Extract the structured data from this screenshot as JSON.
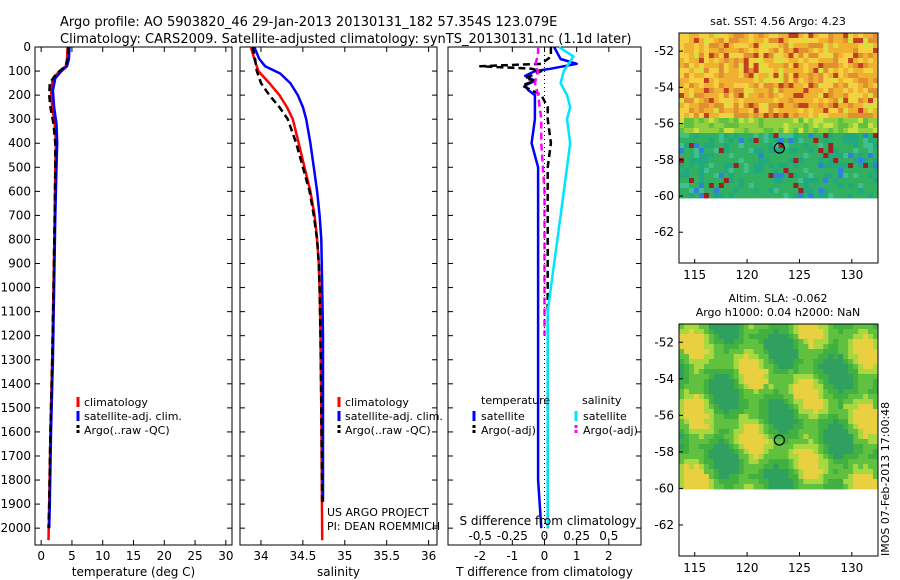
{
  "title_line1": "Argo profile: AO 5903820_46 29-Jan-2013 20130131_182 57.354S 123.079E",
  "title_line2": "Climatology: CARS2009. Satellite-adjusted climatology: synTS_20130131.nc (1.1d later)",
  "side_stamp": "IMOS 07-Feb-2013 17:00:48",
  "project_line1": "US ARGO PROJECT",
  "project_line2": "PI: DEAN ROEMMICH",
  "colors": {
    "climatology": "#ff0000",
    "satellite": "#0000ff",
    "argo": "#000000",
    "sat_salinity": "#00e5ff",
    "argo_salinity_diff": "#ff00ff"
  },
  "chart_data": [
    {
      "type": "line",
      "id": "temperature",
      "xlabel": "temperature (deg C)",
      "ylabel": "",
      "xlim": [
        -1,
        31
      ],
      "ylim": [
        2070,
        0
      ],
      "xticks": [
        0,
        5,
        10,
        15,
        20,
        25,
        30
      ],
      "yticks": [
        0,
        100,
        200,
        300,
        400,
        500,
        600,
        700,
        800,
        900,
        1000,
        1100,
        1200,
        1300,
        1400,
        1500,
        1600,
        1700,
        1800,
        1900,
        2000
      ],
      "legend": [
        "climatology",
        "satellite-adj. clim.",
        "Argo(..raw -QC)"
      ],
      "series": [
        {
          "name": "climatology",
          "style": "solid",
          "points": [
            [
              4.3,
              0
            ],
            [
              4.2,
              50
            ],
            [
              4.0,
              80
            ],
            [
              3.0,
              100
            ],
            [
              1.9,
              130
            ],
            [
              1.6,
              180
            ],
            [
              1.8,
              250
            ],
            [
              2.2,
              320
            ],
            [
              2.4,
              400
            ],
            [
              2.3,
              500
            ],
            [
              2.2,
              700
            ],
            [
              2.0,
              1000
            ],
            [
              1.8,
              1300
            ],
            [
              1.5,
              1600
            ],
            [
              1.3,
              1900
            ],
            [
              1.2,
              2050
            ]
          ]
        },
        {
          "name": "satellite-adj. clim.",
          "style": "solid",
          "points": [
            [
              4.6,
              0
            ],
            [
              4.5,
              50
            ],
            [
              4.2,
              80
            ],
            [
              3.3,
              100
            ],
            [
              2.3,
              130
            ],
            [
              1.9,
              180
            ],
            [
              2.1,
              250
            ],
            [
              2.5,
              320
            ],
            [
              2.6,
              400
            ],
            [
              2.5,
              500
            ],
            [
              2.3,
              700
            ],
            [
              2.1,
              1000
            ],
            [
              1.9,
              1300
            ],
            [
              1.6,
              1600
            ],
            [
              1.4,
              1900
            ],
            [
              1.3,
              2000
            ]
          ]
        },
        {
          "name": "Argo(..raw -QC)",
          "style": "dashed",
          "points": [
            [
              4.4,
              0
            ],
            [
              4.3,
              50
            ],
            [
              4.0,
              80
            ],
            [
              2.5,
              110
            ],
            [
              1.4,
              150
            ],
            [
              1.3,
              200
            ],
            [
              1.5,
              250
            ],
            [
              2.0,
              320
            ],
            [
              2.3,
              400
            ],
            [
              2.3,
              500
            ],
            [
              2.2,
              700
            ],
            [
              2.0,
              1000
            ],
            [
              1.8,
              1300
            ],
            [
              1.5,
              1600
            ],
            [
              1.3,
              1900
            ],
            [
              1.2,
              2000
            ]
          ]
        }
      ]
    },
    {
      "type": "line",
      "id": "salinity",
      "xlabel": "salinity",
      "ylabel": "",
      "xlim": [
        33.75,
        36.1
      ],
      "ylim": [
        2070,
        0
      ],
      "xticks": [
        34,
        34.5,
        35,
        35.5,
        36
      ],
      "legend": [
        "climatology",
        "satellite-adj. clim.",
        "Argo(..raw -QC)"
      ],
      "series": [
        {
          "name": "climatology",
          "style": "solid",
          "points": [
            [
              33.88,
              0
            ],
            [
              33.92,
              50
            ],
            [
              33.97,
              100
            ],
            [
              34.1,
              150
            ],
            [
              34.22,
              200
            ],
            [
              34.31,
              250
            ],
            [
              34.38,
              300
            ],
            [
              34.45,
              400
            ],
            [
              34.52,
              500
            ],
            [
              34.59,
              600
            ],
            [
              34.64,
              700
            ],
            [
              34.67,
              800
            ],
            [
              34.69,
              900
            ],
            [
              34.7,
              1000
            ],
            [
              34.71,
              1200
            ],
            [
              34.72,
              1500
            ],
            [
              34.73,
              2050
            ]
          ]
        },
        {
          "name": "satellite-adj. clim.",
          "style": "solid",
          "points": [
            [
              33.92,
              0
            ],
            [
              33.98,
              50
            ],
            [
              34.05,
              80
            ],
            [
              34.23,
              110
            ],
            [
              34.35,
              150
            ],
            [
              34.44,
              200
            ],
            [
              34.5,
              250
            ],
            [
              34.54,
              300
            ],
            [
              34.59,
              400
            ],
            [
              34.63,
              500
            ],
            [
              34.67,
              600
            ],
            [
              34.7,
              700
            ],
            [
              34.72,
              800
            ],
            [
              34.73,
              1000
            ],
            [
              34.74,
              1200
            ],
            [
              34.74,
              1500
            ],
            [
              34.74,
              1890
            ]
          ]
        },
        {
          "name": "Argo(..raw -QC)",
          "style": "dashed",
          "points": [
            [
              33.9,
              0
            ],
            [
              33.93,
              50
            ],
            [
              33.95,
              100
            ],
            [
              34.0,
              150
            ],
            [
              34.1,
              200
            ],
            [
              34.22,
              250
            ],
            [
              34.32,
              300
            ],
            [
              34.42,
              400
            ],
            [
              34.5,
              500
            ],
            [
              34.58,
              600
            ],
            [
              34.63,
              700
            ],
            [
              34.67,
              800
            ],
            [
              34.69,
              900
            ],
            [
              34.7,
              1000
            ],
            [
              34.71,
              1200
            ],
            [
              34.72,
              1500
            ],
            [
              34.73,
              1900
            ]
          ]
        }
      ]
    },
    {
      "type": "line",
      "id": "difference",
      "xlabel": "T difference from climatology",
      "top_axis_label": "S difference from climatology",
      "xlim": [
        -3,
        3
      ],
      "ylim": [
        2070,
        0
      ],
      "xticks": [
        -2,
        -1,
        0,
        1,
        2
      ],
      "s_ticks": [
        -0.5,
        -0.25,
        0,
        0.25,
        0.5
      ],
      "legend_headers": [
        "temperature",
        "salinity"
      ],
      "legend": [
        "satellite",
        "Argo(-adj)",
        "satellite",
        "Argo(-adj)"
      ],
      "series": [
        {
          "name": "temperature satellite",
          "style": "solid",
          "points": [
            [
              0.3,
              0
            ],
            [
              0.5,
              50
            ],
            [
              1.0,
              70
            ],
            [
              0.2,
              90
            ],
            [
              -0.3,
              100
            ],
            [
              -0.6,
              120
            ],
            [
              -0.3,
              140
            ],
            [
              -0.6,
              160
            ],
            [
              -0.5,
              180
            ],
            [
              -0.3,
              200
            ],
            [
              -0.3,
              300
            ],
            [
              -0.4,
              400
            ],
            [
              -0.2,
              500
            ],
            [
              -0.2,
              700
            ],
            [
              -0.2,
              1000
            ],
            [
              -0.2,
              1300
            ],
            [
              -0.2,
              1600
            ],
            [
              -0.2,
              1800
            ],
            [
              -0.1,
              2000
            ]
          ]
        },
        {
          "name": "temperature Argo(-adj)",
          "style": "dashed",
          "points": [
            [
              0.2,
              0
            ],
            [
              0.2,
              40
            ],
            [
              -0.1,
              70
            ],
            [
              -2.0,
              80
            ],
            [
              -0.4,
              90
            ],
            [
              -0.1,
              100
            ],
            [
              -0.6,
              130
            ],
            [
              -0.3,
              140
            ],
            [
              -0.7,
              160
            ],
            [
              -0.4,
              180
            ],
            [
              -0.1,
              200
            ],
            [
              0.1,
              250
            ],
            [
              0.1,
              300
            ],
            [
              0.2,
              400
            ],
            [
              0.1,
              500
            ],
            [
              0.1,
              700
            ],
            [
              0.1,
              1000
            ],
            [
              0.1,
              1300
            ],
            [
              0.1,
              1600
            ],
            [
              0.1,
              1800
            ],
            [
              0.1,
              2000
            ]
          ]
        },
        {
          "name": "salinity satellite",
          "style": "solid",
          "points": [
            [
              0.45,
              0
            ],
            [
              0.9,
              40
            ],
            [
              0.7,
              80
            ],
            [
              0.6,
              100
            ],
            [
              0.5,
              150
            ],
            [
              0.7,
              200
            ],
            [
              0.8,
              250
            ],
            [
              0.7,
              300
            ],
            [
              0.8,
              400
            ],
            [
              0.7,
              500
            ],
            [
              0.6,
              600
            ],
            [
              0.5,
              700
            ],
            [
              0.4,
              800
            ],
            [
              0.3,
              900
            ],
            [
              0.2,
              1000
            ],
            [
              0.1,
              1100
            ],
            [
              0.1,
              1300
            ],
            [
              0.1,
              1500
            ],
            [
              0.1,
              1800
            ],
            [
              0.1,
              2000
            ]
          ]
        },
        {
          "name": "salinity Argo(-adj)",
          "style": "dashed",
          "points": [
            [
              -0.2,
              0
            ],
            [
              -0.2,
              30
            ],
            [
              -0.3,
              80
            ],
            [
              -0.2,
              100
            ],
            [
              -0.3,
              150
            ],
            [
              -0.2,
              200
            ],
            [
              -0.15,
              250
            ],
            [
              -0.1,
              300
            ],
            [
              -0.1,
              400
            ],
            [
              0.0,
              600
            ],
            [
              0.0,
              800
            ],
            [
              0.0,
              1000
            ],
            [
              0.0,
              1200
            ]
          ]
        }
      ]
    },
    {
      "type": "heatmap",
      "id": "sst-map",
      "title": "sat. SST: 4.56 Argo: 4.23",
      "xlim": [
        113.5,
        132.5
      ],
      "ylim": [
        -63.7,
        -51
      ],
      "xticks": [
        115,
        120,
        125,
        130
      ],
      "yticks": [
        -52,
        -54,
        -56,
        -58,
        -60,
        -62
      ],
      "marker": {
        "lon": 123.079,
        "lat": -57.354
      }
    },
    {
      "type": "heatmap",
      "id": "sla-map",
      "title": "Altim. SLA: -0.062",
      "subtitle": "Argo h1000: 0.04 h2000: NaN",
      "xlim": [
        113.5,
        132.5
      ],
      "ylim": [
        -63.7,
        -51
      ],
      "xticks": [
        115,
        120,
        125,
        130
      ],
      "yticks": [
        -52,
        -54,
        -56,
        -58,
        -60,
        -62
      ],
      "marker": {
        "lon": 123.079,
        "lat": -57.354
      }
    }
  ]
}
